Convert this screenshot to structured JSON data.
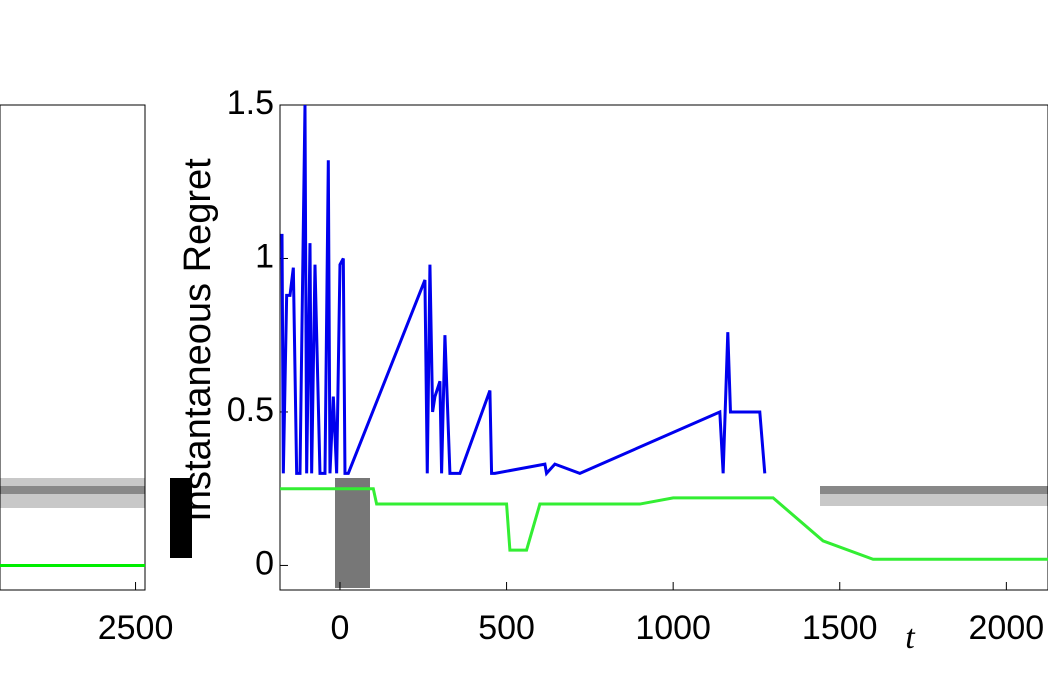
{
  "chart_data": [
    {
      "type": "line",
      "xlim": [
        2070,
        2530
      ],
      "ylim": [
        -0.08,
        1.5
      ],
      "xticks": [
        2500
      ],
      "series": [
        {
          "color": "#00ee00",
          "x": [
            2070,
            2530
          ],
          "values": [
            0,
            0
          ]
        }
      ]
    },
    {
      "type": "line",
      "y_label": "Instantaneous Regret",
      "x_label": "t",
      "xlim": [
        -180,
        2125
      ],
      "ylim": [
        -0.08,
        1.5
      ],
      "xticks": [
        0,
        500,
        1000,
        1500,
        2000
      ],
      "yticks": [
        0,
        0.5,
        1,
        1.5
      ],
      "series": [
        {
          "color": "#0000ee",
          "x": [
            -174,
            -170,
            -160,
            -150,
            -140,
            -130,
            -120,
            -105,
            -100,
            -90,
            -85,
            -75,
            -60,
            -45,
            -35,
            -30,
            -20,
            -10,
            0,
            10,
            15,
            25,
            255,
            262,
            270,
            278,
            285,
            300,
            305,
            315,
            330,
            345,
            360,
            450,
            455,
            465,
            615,
            620,
            645,
            720,
            1140,
            1150,
            1164,
            1172,
            1185,
            1260,
            1275
          ],
          "values": [
            1.08,
            0.3,
            0.88,
            0.88,
            0.97,
            0.3,
            0.3,
            1.5,
            0.3,
            1.05,
            0.3,
            0.98,
            0.3,
            0.3,
            1.32,
            0.3,
            0.55,
            0.3,
            0.98,
            1.0,
            0.3,
            0.3,
            0.93,
            0.3,
            0.98,
            0.5,
            0.55,
            0.6,
            0.3,
            0.75,
            0.3,
            0.3,
            0.3,
            0.57,
            0.3,
            0.3,
            0.33,
            0.3,
            0.33,
            0.3,
            0.5,
            0.3,
            0.76,
            0.5,
            0.5,
            0.5,
            0.3
          ]
        },
        {
          "color": "#33ee33",
          "x": [
            -180,
            100,
            110,
            500,
            510,
            560,
            600,
            900,
            1000,
            1300,
            1450,
            1600,
            2125
          ],
          "values": [
            0.25,
            0.25,
            0.2,
            0.2,
            0.05,
            0.05,
            0.2,
            0.2,
            0.22,
            0.22,
            0.08,
            0.02,
            0.02
          ]
        }
      ]
    }
  ]
}
